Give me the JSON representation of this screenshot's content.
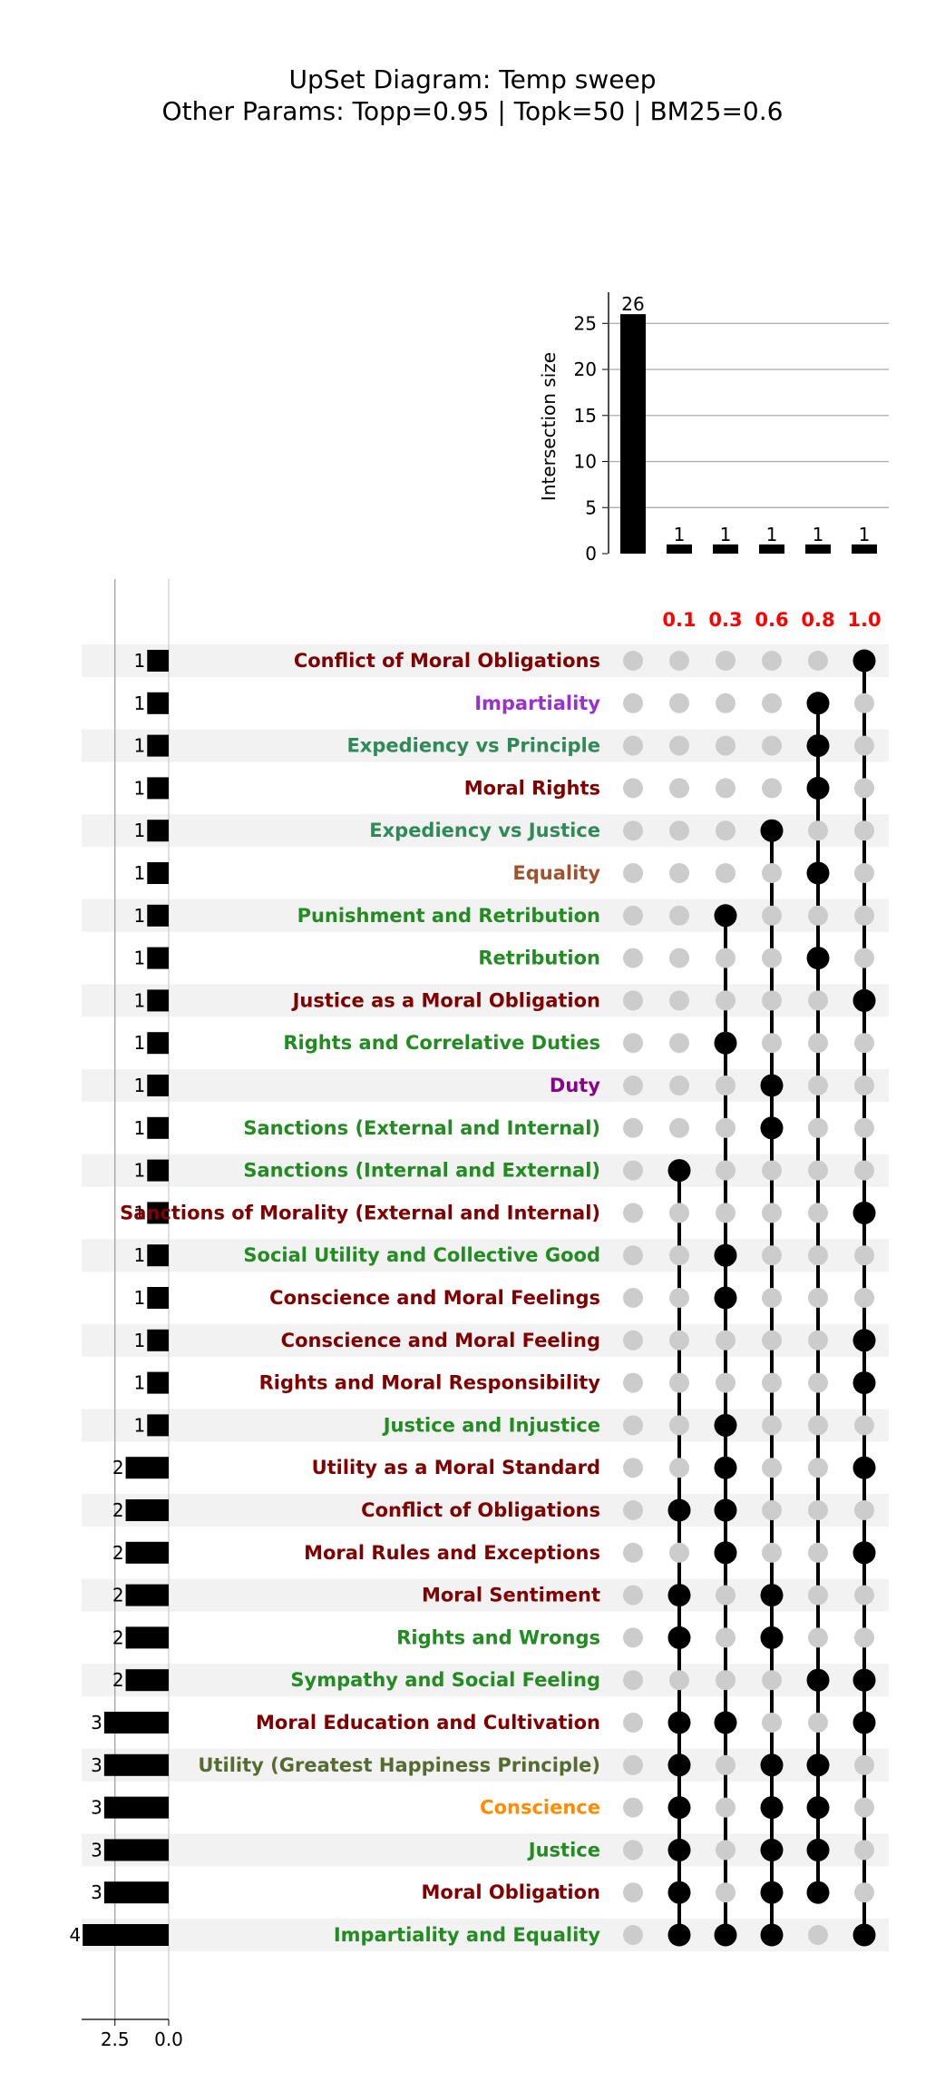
{
  "chart_data": {
    "type": "upset",
    "title": "UpSet Diagram: Temp sweep",
    "subtitle": "Other Params: Topp=0.95 | Topk=50 | BM25=0.6",
    "intersection_axis_label": "Intersection size",
    "intersection_ylim": [
      0,
      27
    ],
    "intersection_ticks": [
      0,
      5,
      10,
      15,
      20,
      25
    ],
    "intersections": [
      {
        "members": [],
        "size": 26
      },
      {
        "members": [
          "0.1"
        ],
        "size": 1
      },
      {
        "members": [
          "0.3"
        ],
        "size": 1
      },
      {
        "members": [
          "0.6"
        ],
        "size": 1
      },
      {
        "members": [
          "0.8"
        ],
        "size": 1
      },
      {
        "members": [
          "1.0"
        ],
        "size": 1
      }
    ],
    "columns": [
      "0.1",
      "0.3",
      "0.6",
      "0.8",
      "1.0"
    ],
    "column_color": "#ff0000",
    "set_size_ticks": [
      2.5,
      0.0
    ],
    "set_size_tick_labels": [
      "2.5",
      "0.0"
    ],
    "set_size_xmax": 4.05,
    "colors": {
      "bar": "#000000",
      "dot_on": "#000000",
      "dot_off": "#cccccc",
      "stripe": "#f2f2f2",
      "grid": "#b0b0b0"
    },
    "rows": [
      {
        "name": "Conflict of Moral Obligations",
        "color": "#800000",
        "size": 1,
        "dots": [
          5
        ]
      },
      {
        "name": "Impartiality",
        "color": "#9932cc",
        "size": 1,
        "dots": [
          4
        ]
      },
      {
        "name": "Expediency vs Principle",
        "color": "#2e8b57",
        "size": 1,
        "dots": [
          4
        ]
      },
      {
        "name": "Moral Rights",
        "color": "#800000",
        "size": 1,
        "dots": [
          4
        ]
      },
      {
        "name": "Expediency vs Justice",
        "color": "#2e8b57",
        "size": 1,
        "dots": [
          3
        ]
      },
      {
        "name": "Equality",
        "color": "#a0522d",
        "size": 1,
        "dots": [
          4
        ]
      },
      {
        "name": "Punishment and Retribution",
        "color": "#228b22",
        "size": 1,
        "dots": [
          2
        ]
      },
      {
        "name": "Retribution",
        "color": "#228b22",
        "size": 1,
        "dots": [
          4
        ]
      },
      {
        "name": "Justice as a Moral Obligation",
        "color": "#800000",
        "size": 1,
        "dots": [
          5
        ]
      },
      {
        "name": "Rights and Correlative Duties",
        "color": "#228b22",
        "size": 1,
        "dots": [
          2
        ]
      },
      {
        "name": "Duty",
        "color": "#8b008b",
        "size": 1,
        "dots": [
          3
        ]
      },
      {
        "name": "Sanctions (External and Internal)",
        "color": "#228b22",
        "size": 1,
        "dots": [
          3
        ]
      },
      {
        "name": "Sanctions (Internal and External)",
        "color": "#228b22",
        "size": 1,
        "dots": [
          1
        ]
      },
      {
        "name": "Sanctions of Morality (External and Internal)",
        "color": "#800000",
        "size": 1,
        "dots": [
          5
        ]
      },
      {
        "name": "Social Utility and Collective Good",
        "color": "#228b22",
        "size": 1,
        "dots": [
          2
        ]
      },
      {
        "name": "Conscience and Moral Feelings",
        "color": "#800000",
        "size": 1,
        "dots": [
          2
        ]
      },
      {
        "name": "Conscience and Moral Feeling",
        "color": "#800000",
        "size": 1,
        "dots": [
          5
        ]
      },
      {
        "name": "Rights and Moral Responsibility",
        "color": "#800000",
        "size": 1,
        "dots": [
          5
        ]
      },
      {
        "name": "Justice and Injustice",
        "color": "#228b22",
        "size": 1,
        "dots": [
          2
        ]
      },
      {
        "name": "Utility as a Moral Standard",
        "color": "#800000",
        "size": 2,
        "dots": [
          2,
          5
        ]
      },
      {
        "name": "Conflict of Obligations",
        "color": "#800000",
        "size": 2,
        "dots": [
          1,
          2
        ]
      },
      {
        "name": "Moral Rules and Exceptions",
        "color": "#800000",
        "size": 2,
        "dots": [
          2,
          5
        ]
      },
      {
        "name": "Moral Sentiment",
        "color": "#800000",
        "size": 2,
        "dots": [
          1,
          3
        ]
      },
      {
        "name": "Rights and Wrongs",
        "color": "#228b22",
        "size": 2,
        "dots": [
          1,
          3
        ]
      },
      {
        "name": "Sympathy and Social Feeling",
        "color": "#228b22",
        "size": 2,
        "dots": [
          4,
          5
        ]
      },
      {
        "name": "Moral Education and Cultivation",
        "color": "#800000",
        "size": 3,
        "dots": [
          1,
          2,
          5
        ]
      },
      {
        "name": "Utility (Greatest Happiness Principle)",
        "color": "#556b2f",
        "size": 3,
        "dots": [
          1,
          3,
          4
        ]
      },
      {
        "name": "Conscience",
        "color": "#ff8c00",
        "size": 3,
        "dots": [
          1,
          3,
          4
        ]
      },
      {
        "name": "Justice",
        "color": "#228b22",
        "size": 3,
        "dots": [
          1,
          3,
          4
        ]
      },
      {
        "name": "Moral Obligation",
        "color": "#800000",
        "size": 3,
        "dots": [
          1,
          3,
          4
        ]
      },
      {
        "name": "Impartiality and Equality",
        "color": "#228b22",
        "size": 4,
        "dots": [
          1,
          2,
          3,
          5
        ]
      }
    ]
  }
}
